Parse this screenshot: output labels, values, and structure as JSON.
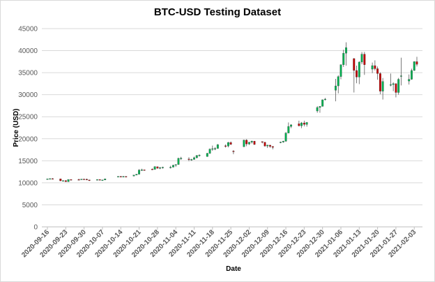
{
  "chart_data": {
    "type": "candlestick",
    "title": "BTC-USD Testing Dataset",
    "xlabel": "Date",
    "ylabel": "Price (USD)",
    "ylim": [
      0,
      45000
    ],
    "y_ticks": [
      0,
      5000,
      10000,
      15000,
      20000,
      25000,
      30000,
      35000,
      40000,
      45000
    ],
    "x_ticks": [
      "2020-09-16",
      "2020-09-23",
      "2020-09-30",
      "2020-10-07",
      "2020-10-14",
      "2020-10-21",
      "2020-10-28",
      "2020-11-04",
      "2020-11-11",
      "2020-11-18",
      "2020-11-25",
      "2020-12-02",
      "2020-12-09",
      "2020-12-16",
      "2020-12-23",
      "2020-12-30",
      "2021-01-06",
      "2021-01-13",
      "2021-01-20",
      "2021-01-27",
      "2021-02-03"
    ],
    "x_range": [
      "2020-09-16",
      "2021-02-04"
    ],
    "grid": "horizontal",
    "colors": {
      "up": "#00b050",
      "down": "#c00000",
      "wick": "#595959"
    },
    "candles": [
      {
        "date": "2020-09-16",
        "o": 10800,
        "h": 10950,
        "l": 10750,
        "c": 10900
      },
      {
        "date": "2020-09-17",
        "o": 10900,
        "h": 11000,
        "l": 10800,
        "c": 10950
      },
      {
        "date": "2020-09-18",
        "o": 10950,
        "h": 11050,
        "l": 10850,
        "c": 10900
      },
      {
        "date": "2020-09-21",
        "o": 10900,
        "h": 10950,
        "l": 10400,
        "c": 10450
      },
      {
        "date": "2020-09-22",
        "o": 10450,
        "h": 10550,
        "l": 10350,
        "c": 10500
      },
      {
        "date": "2020-09-23",
        "o": 10500,
        "h": 10600,
        "l": 10200,
        "c": 10250
      },
      {
        "date": "2020-09-24",
        "o": 10250,
        "h": 10800,
        "l": 10200,
        "c": 10750
      },
      {
        "date": "2020-09-25",
        "o": 10750,
        "h": 10800,
        "l": 10600,
        "c": 10700
      },
      {
        "date": "2020-09-28",
        "o": 10750,
        "h": 10950,
        "l": 10650,
        "c": 10700
      },
      {
        "date": "2020-09-29",
        "o": 10700,
        "h": 10850,
        "l": 10650,
        "c": 10850
      },
      {
        "date": "2020-09-30",
        "o": 10850,
        "h": 10900,
        "l": 10700,
        "c": 10800
      },
      {
        "date": "2020-10-01",
        "o": 10800,
        "h": 10950,
        "l": 10600,
        "c": 10650
      },
      {
        "date": "2020-10-02",
        "o": 10650,
        "h": 10700,
        "l": 10400,
        "c": 10550
      },
      {
        "date": "2020-10-05",
        "o": 10700,
        "h": 10800,
        "l": 10600,
        "c": 10750
      },
      {
        "date": "2020-10-06",
        "o": 10750,
        "h": 10800,
        "l": 10550,
        "c": 10600
      },
      {
        "date": "2020-10-07",
        "o": 10600,
        "h": 10700,
        "l": 10550,
        "c": 10650
      },
      {
        "date": "2020-10-08",
        "o": 10650,
        "h": 10950,
        "l": 10600,
        "c": 10900
      },
      {
        "date": "2020-10-13",
        "o": 11400,
        "h": 11500,
        "l": 11300,
        "c": 11450
      },
      {
        "date": "2020-10-14",
        "o": 11450,
        "h": 11550,
        "l": 11300,
        "c": 11400
      },
      {
        "date": "2020-10-15",
        "o": 11400,
        "h": 11550,
        "l": 11250,
        "c": 11450
      },
      {
        "date": "2020-10-16",
        "o": 11450,
        "h": 11500,
        "l": 11250,
        "c": 11350
      },
      {
        "date": "2020-10-19",
        "o": 11550,
        "h": 11800,
        "l": 11450,
        "c": 11750
      },
      {
        "date": "2020-10-20",
        "o": 11750,
        "h": 12000,
        "l": 11700,
        "c": 11950
      },
      {
        "date": "2020-10-21",
        "o": 11950,
        "h": 13100,
        "l": 11900,
        "c": 12900
      },
      {
        "date": "2020-10-22",
        "o": 12900,
        "h": 13200,
        "l": 12700,
        "c": 12950
      },
      {
        "date": "2020-10-23",
        "o": 12950,
        "h": 13000,
        "l": 12800,
        "c": 12900
      },
      {
        "date": "2020-10-26",
        "o": 13100,
        "h": 13250,
        "l": 12900,
        "c": 13050
      },
      {
        "date": "2020-10-27",
        "o": 13050,
        "h": 13800,
        "l": 13000,
        "c": 13650
      },
      {
        "date": "2020-10-28",
        "o": 13650,
        "h": 13700,
        "l": 13200,
        "c": 13300
      },
      {
        "date": "2020-10-29",
        "o": 13300,
        "h": 13600,
        "l": 13100,
        "c": 13450
      },
      {
        "date": "2020-10-30",
        "o": 13450,
        "h": 13650,
        "l": 13200,
        "c": 13550
      },
      {
        "date": "2020-11-02",
        "o": 13550,
        "h": 13850,
        "l": 13250,
        "c": 13550
      },
      {
        "date": "2020-11-03",
        "o": 13550,
        "h": 14100,
        "l": 13500,
        "c": 14000
      },
      {
        "date": "2020-11-04",
        "o": 14000,
        "h": 14200,
        "l": 13600,
        "c": 14150
      },
      {
        "date": "2020-11-05",
        "o": 14150,
        "h": 15700,
        "l": 14100,
        "c": 15550
      },
      {
        "date": "2020-11-06",
        "o": 15550,
        "h": 15900,
        "l": 15200,
        "c": 15600
      },
      {
        "date": "2020-11-09",
        "o": 15400,
        "h": 15800,
        "l": 14900,
        "c": 15300
      },
      {
        "date": "2020-11-10",
        "o": 15300,
        "h": 15450,
        "l": 15000,
        "c": 15300
      },
      {
        "date": "2020-11-11",
        "o": 15300,
        "h": 15950,
        "l": 15250,
        "c": 15700
      },
      {
        "date": "2020-11-12",
        "o": 15700,
        "h": 16300,
        "l": 15500,
        "c": 16200
      },
      {
        "date": "2020-11-13",
        "o": 16200,
        "h": 16450,
        "l": 15950,
        "c": 16300
      },
      {
        "date": "2020-11-16",
        "o": 15950,
        "h": 16800,
        "l": 15900,
        "c": 16700
      },
      {
        "date": "2020-11-17",
        "o": 16700,
        "h": 17800,
        "l": 16550,
        "c": 17650
      },
      {
        "date": "2020-11-18",
        "o": 17650,
        "h": 18450,
        "l": 17250,
        "c": 17750
      },
      {
        "date": "2020-11-19",
        "o": 17750,
        "h": 18100,
        "l": 17400,
        "c": 17800
      },
      {
        "date": "2020-11-20",
        "o": 17800,
        "h": 18800,
        "l": 17750,
        "c": 18650
      },
      {
        "date": "2020-11-23",
        "o": 18400,
        "h": 18700,
        "l": 18000,
        "c": 18350
      },
      {
        "date": "2020-11-24",
        "o": 18350,
        "h": 19300,
        "l": 18050,
        "c": 19150
      },
      {
        "date": "2020-11-25",
        "o": 19150,
        "h": 19400,
        "l": 18550,
        "c": 18750
      },
      {
        "date": "2020-11-26",
        "o": 17200,
        "h": 17400,
        "l": 16500,
        "c": 17100
      },
      {
        "date": "2020-11-30",
        "o": 18200,
        "h": 19800,
        "l": 18100,
        "c": 19700
      },
      {
        "date": "2020-12-01",
        "o": 19700,
        "h": 19900,
        "l": 18300,
        "c": 18800
      },
      {
        "date": "2020-12-02",
        "o": 18800,
        "h": 19300,
        "l": 18600,
        "c": 19200
      },
      {
        "date": "2020-12-03",
        "o": 19200,
        "h": 19600,
        "l": 18900,
        "c": 19450
      },
      {
        "date": "2020-12-04",
        "o": 19450,
        "h": 19500,
        "l": 18600,
        "c": 18700
      },
      {
        "date": "2020-12-07",
        "o": 19350,
        "h": 19400,
        "l": 18950,
        "c": 19200
      },
      {
        "date": "2020-12-08",
        "o": 19200,
        "h": 19300,
        "l": 18200,
        "c": 18350
      },
      {
        "date": "2020-12-09",
        "o": 18350,
        "h": 18650,
        "l": 17900,
        "c": 18550
      },
      {
        "date": "2020-12-10",
        "o": 18550,
        "h": 18600,
        "l": 17950,
        "c": 18250
      },
      {
        "date": "2020-12-11",
        "o": 18250,
        "h": 18300,
        "l": 17600,
        "c": 18050
      },
      {
        "date": "2020-12-14",
        "o": 19150,
        "h": 19350,
        "l": 19000,
        "c": 19250
      },
      {
        "date": "2020-12-15",
        "o": 19250,
        "h": 19550,
        "l": 19100,
        "c": 19450
      },
      {
        "date": "2020-12-16",
        "o": 19450,
        "h": 21500,
        "l": 19300,
        "c": 21300
      },
      {
        "date": "2020-12-17",
        "o": 21300,
        "h": 23700,
        "l": 21250,
        "c": 22800
      },
      {
        "date": "2020-12-18",
        "o": 22800,
        "h": 23300,
        "l": 22400,
        "c": 23150
      },
      {
        "date": "2020-12-21",
        "o": 23400,
        "h": 24100,
        "l": 22800,
        "c": 22950
      },
      {
        "date": "2020-12-22",
        "o": 22950,
        "h": 23800,
        "l": 22400,
        "c": 23600
      },
      {
        "date": "2020-12-23",
        "o": 23600,
        "h": 24100,
        "l": 22800,
        "c": 23250
      },
      {
        "date": "2020-12-24",
        "o": 23250,
        "h": 23800,
        "l": 22750,
        "c": 23700
      },
      {
        "date": "2020-12-28",
        "o": 26300,
        "h": 27400,
        "l": 25900,
        "c": 27100
      },
      {
        "date": "2020-12-29",
        "o": 27100,
        "h": 27400,
        "l": 25900,
        "c": 27350
      },
      {
        "date": "2020-12-30",
        "o": 27350,
        "h": 28900,
        "l": 27300,
        "c": 28850
      },
      {
        "date": "2020-12-31",
        "o": 28850,
        "h": 29250,
        "l": 28700,
        "c": 29000
      },
      {
        "date": "2021-01-04",
        "o": 31000,
        "h": 33600,
        "l": 28500,
        "c": 32000
      },
      {
        "date": "2021-01-05",
        "o": 32000,
        "h": 34400,
        "l": 30300,
        "c": 34100
      },
      {
        "date": "2021-01-06",
        "o": 34100,
        "h": 36900,
        "l": 33500,
        "c": 36800
      },
      {
        "date": "2021-01-07",
        "o": 36800,
        "h": 40200,
        "l": 36300,
        "c": 39400
      },
      {
        "date": "2021-01-08",
        "o": 39400,
        "h": 41900,
        "l": 36600,
        "c": 40700
      },
      {
        "date": "2021-01-11",
        "o": 38200,
        "h": 38300,
        "l": 30500,
        "c": 35500
      },
      {
        "date": "2021-01-12",
        "o": 35500,
        "h": 36600,
        "l": 32600,
        "c": 34000
      },
      {
        "date": "2021-01-13",
        "o": 34000,
        "h": 37600,
        "l": 32400,
        "c": 37400
      },
      {
        "date": "2021-01-14",
        "o": 37400,
        "h": 39700,
        "l": 36900,
        "c": 39200
      },
      {
        "date": "2021-01-15",
        "o": 39200,
        "h": 39700,
        "l": 34500,
        "c": 36800
      },
      {
        "date": "2021-01-18",
        "o": 35800,
        "h": 37300,
        "l": 34900,
        "c": 36600
      },
      {
        "date": "2021-01-19",
        "o": 36600,
        "h": 37800,
        "l": 35500,
        "c": 35900
      },
      {
        "date": "2021-01-20",
        "o": 35900,
        "h": 36400,
        "l": 33400,
        "c": 34800
      },
      {
        "date": "2021-01-21",
        "o": 34800,
        "h": 35100,
        "l": 30100,
        "c": 30800
      },
      {
        "date": "2021-01-22",
        "o": 30800,
        "h": 33800,
        "l": 28900,
        "c": 33000
      },
      {
        "date": "2021-01-25",
        "o": 32300,
        "h": 34800,
        "l": 31900,
        "c": 32300
      },
      {
        "date": "2021-01-26",
        "o": 32300,
        "h": 32800,
        "l": 30800,
        "c": 32500
      },
      {
        "date": "2021-01-27",
        "o": 32500,
        "h": 32600,
        "l": 29400,
        "c": 30500
      },
      {
        "date": "2021-01-28",
        "o": 30500,
        "h": 33800,
        "l": 30000,
        "c": 33500
      },
      {
        "date": "2021-01-29",
        "o": 34300,
        "h": 38400,
        "l": 32100,
        "c": 34300
      },
      {
        "date": "2021-02-01",
        "o": 33100,
        "h": 34600,
        "l": 32300,
        "c": 33500
      },
      {
        "date": "2021-02-02",
        "o": 33500,
        "h": 35900,
        "l": 33400,
        "c": 35500
      },
      {
        "date": "2021-02-03",
        "o": 35500,
        "h": 37600,
        "l": 35400,
        "c": 37500
      },
      {
        "date": "2021-02-04",
        "o": 37500,
        "h": 38600,
        "l": 36400,
        "c": 36900
      }
    ]
  }
}
